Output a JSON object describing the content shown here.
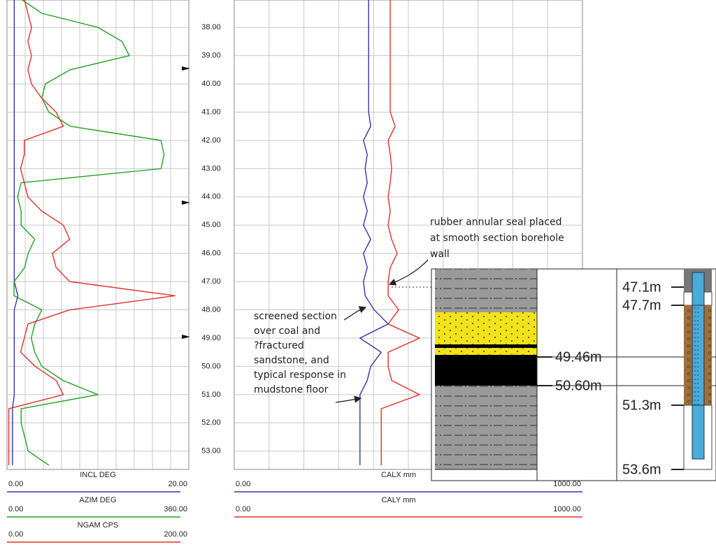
{
  "chart_data": {
    "type": "well-log",
    "ylim": [
      37.03,
      53.65
    ],
    "yticks": [
      {
        "value": 38,
        "label": "38.00"
      },
      {
        "value": 39,
        "label": "39.00"
      },
      {
        "value": 40,
        "label": "40.00"
      },
      {
        "value": 41,
        "label": "41.00"
      },
      {
        "value": 42,
        "label": "42.00"
      },
      {
        "value": 43,
        "label": "43.00"
      },
      {
        "value": 44,
        "label": "44.00"
      },
      {
        "value": 45,
        "label": "45.00"
      },
      {
        "value": 46,
        "label": "46.00"
      },
      {
        "value": 47,
        "label": "47.00"
      },
      {
        "value": 48,
        "label": "48.00"
      },
      {
        "value": 49,
        "label": "49.00"
      },
      {
        "value": 50,
        "label": "50.00"
      },
      {
        "value": 51,
        "label": "51.00"
      },
      {
        "value": 52,
        "label": "52.00"
      },
      {
        "value": 53,
        "label": "53.00"
      }
    ],
    "depth": [
      37,
      37.5,
      38,
      38.5,
      39,
      39.5,
      40,
      40.5,
      41,
      41.5,
      42,
      42.5,
      43,
      43.5,
      44,
      44.5,
      45,
      45.5,
      46,
      46.5,
      47,
      47.5,
      48,
      48.5,
      49,
      49.5,
      50,
      50.5,
      51,
      51.5,
      52,
      52.5,
      53,
      53.5
    ],
    "tracks": [
      {
        "series": [
          {
            "name": "INCL  DEG",
            "color": "#3333aa",
            "xlim": [
              0,
              20
            ],
            "xticks": [
              {
                "value": 0,
                "label": "0.00"
              },
              {
                "value": 20,
                "label": "20.00"
              }
            ],
            "values": [
              0.8,
              0.8,
              0.8,
              0.8,
              0.8,
              0.8,
              0.8,
              0.8,
              0.8,
              0.8,
              0.8,
              0.8,
              0.8,
              0.8,
              0.8,
              0.8,
              0.8,
              0.8,
              0.8,
              0.8,
              0.8,
              1.2,
              0.8,
              0.8,
              0.8,
              0.8,
              0.8,
              0.8,
              0.8,
              0.6,
              0.6,
              0.6,
              0.6,
              0.6
            ]
          },
          {
            "name": "AZIM  DEG",
            "color": "#22a022",
            "xlim": [
              0,
              360
            ],
            "xticks": [
              {
                "value": 0,
                "label": "0.00"
              },
              {
                "value": 360,
                "label": "360.00"
              }
            ],
            "values": [
              28,
              69,
              180,
              228,
              242,
              125,
              76,
              69,
              83,
              125,
              305,
              311,
              305,
              28,
              21,
              28,
              28,
              55,
              42,
              35,
              14,
              14,
              69,
              55,
              48,
              55,
              69,
              111,
              180,
              28,
              28,
              35,
              42,
              83
            ]
          },
          {
            "name": "NGAM  CPS",
            "color": "#e0302a",
            "xlim": [
              0,
              200
            ],
            "xticks": [
              {
                "value": 0,
                "label": "0.00"
              },
              {
                "value": 200,
                "label": "200.00"
              }
            ],
            "values": [
              19,
              23,
              27,
              23,
              27,
              23,
              27,
              38,
              54,
              62,
              19,
              19,
              15,
              19,
              23,
              38,
              62,
              69,
              50,
              54,
              69,
              185,
              69,
              23,
              19,
              15,
              31,
              54,
              62,
              2,
              2,
              2,
              2,
              2
            ]
          }
        ]
      },
      {
        "series": [
          {
            "name": "CALX  mm",
            "color": "#3333aa",
            "xlim": [
              0,
              1000
            ],
            "xticks": [
              {
                "value": 0,
                "label": "0.00"
              },
              {
                "value": 1000,
                "label": "1000.00"
              }
            ],
            "values": [
              386,
              386,
              386,
              386,
              386,
              386,
              386,
              386,
              386,
              392,
              371,
              382,
              376,
              382,
              371,
              382,
              371,
              392,
              371,
              382,
              371,
              376,
              402,
              442,
              361,
              422,
              392,
              382,
              361,
              361,
              361,
              361,
              361,
              361
            ]
          },
          {
            "name": "CALY  mm",
            "color": "#e0302a",
            "xlim": [
              0,
              1000
            ],
            "xticks": [
              {
                "value": 0,
                "label": "0.00"
              },
              {
                "value": 1000,
                "label": "1000.00"
              }
            ],
            "values": [
              448,
              448,
              448,
              448,
              448,
              448,
              448,
              448,
              448,
              462,
              442,
              448,
              452,
              448,
              442,
              448,
              442,
              452,
              468,
              448,
              442,
              442,
              472,
              442,
              532,
              442,
              442,
              452,
              532,
              422,
              422,
              422,
              422,
              422
            ]
          }
        ]
      }
    ],
    "annotations": [
      {
        "lines": [
          "rubber annular seal placed",
          "at smooth section borehole",
          "wall"
        ]
      },
      {
        "lines": [
          "screened section",
          "over coal and",
          "?fractured",
          "sandstone, and",
          "typical response in",
          "mudstone floor"
        ]
      }
    ],
    "inset": {
      "lithology_labels": [
        "49.46m",
        "50.60m"
      ],
      "well_labels": [
        "47.1m",
        "47.7m",
        "51.3m",
        "53.6m"
      ]
    }
  }
}
